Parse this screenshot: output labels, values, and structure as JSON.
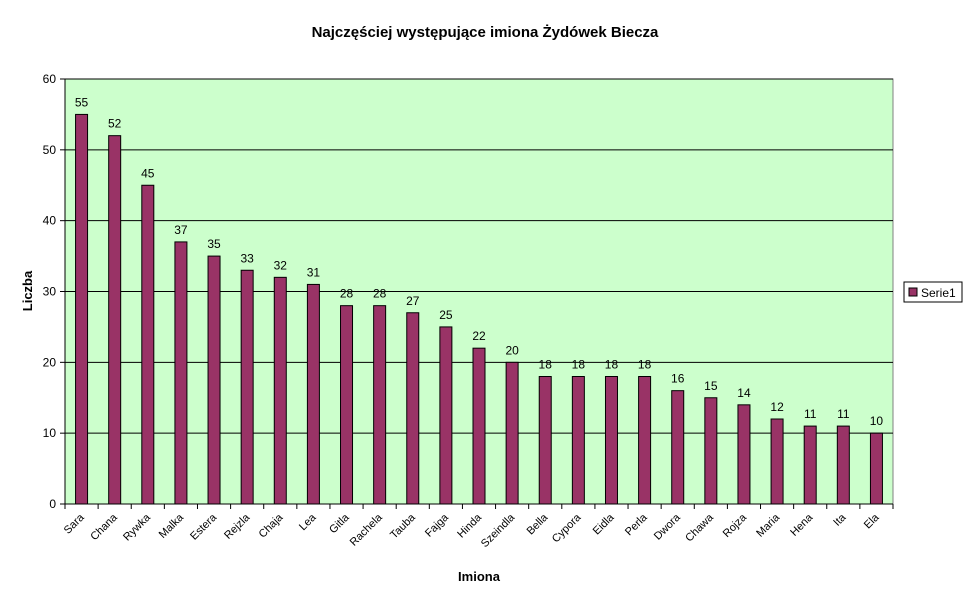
{
  "chart_data": {
    "type": "bar",
    "title": "Najczęściej występujące imiona Żydówek Biecza",
    "xlabel": "Imiona",
    "ylabel": "Liczba",
    "ylim": [
      0,
      60
    ],
    "yticks": [
      0,
      10,
      20,
      30,
      40,
      50,
      60
    ],
    "grid": true,
    "legend_position": "right",
    "categories": [
      "Sara",
      "Chana",
      "Rywka",
      "Malka",
      "Estera",
      "Rejzla",
      "Chaja",
      "Lea",
      "Gitla",
      "Rachela",
      "Tauba",
      "Fajga",
      "Hinda",
      "Szeindla",
      "Bella",
      "Cypora",
      "Eidla",
      "Perla",
      "Dwora",
      "Chawa",
      "Rojza",
      "Maria",
      "Hena",
      "Ita",
      "Ela"
    ],
    "series": [
      {
        "name": "Serie1",
        "values": [
          55,
          52,
          45,
          37,
          35,
          33,
          32,
          31,
          28,
          28,
          27,
          25,
          22,
          20,
          18,
          18,
          18,
          18,
          16,
          15,
          14,
          12,
          11,
          11,
          10
        ]
      }
    ],
    "colors": {
      "plot_bg": "#ccffcc",
      "bar": "#993366",
      "bar_border": "#000000",
      "grid": "#000000",
      "axis": "#808080"
    }
  }
}
